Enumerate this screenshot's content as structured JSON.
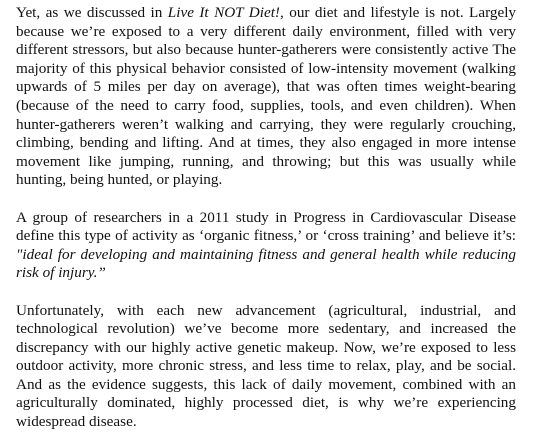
{
  "document": {
    "paragraphs": [
      {
        "before_italic": "Yet, as we discussed in ",
        "italic": "Live It NOT Diet!",
        "after_italic": ", our diet and lifestyle is not.  Largely because we’re exposed to a very different daily environment, filled with very different stressors, but also because hunter-gatherers were consistently active The majority of this physical behavior consisted of low-intensity movement (walking upwards of 5 miles per day on average), that was often times weight-bearing (because of the need to carry food, supplies, tools, and even children).  When hunter-gatherers weren’t walking and carrying, they were regularly crouching, climbing, bending and lifting.  And at times, they also engaged in more intense movement like jumping, running, and throwing; but this was usually while hunting, being hunted, or playing."
      },
      {
        "before_italic": "A group of researchers in a 2011 study in Progress in Cardiovascular Disease define this type of activity as ‘organic fitness,’ or ‘cross training’ and believe it’s: ",
        "italic": "\"ideal for developing and maintaining fitness and general health while reducing risk of injury.”",
        "after_italic": ""
      },
      {
        "before_italic": "Unfortunately, with each new advancement (agricultural, industrial, and technological revolution) we’ve become more sedentary, and increased the discrepancy with our highly active genetic makeup.  Now, we’re exposed to less outdoor activity, more chronic stress, and less time to relax, play, and be social.  And as the evidence suggests, this lack of daily movement, combined with an agriculturally dominated, highly processed diet, is why we’re experiencing widespread disease.",
        "italic": "",
        "after_italic": ""
      }
    ]
  }
}
